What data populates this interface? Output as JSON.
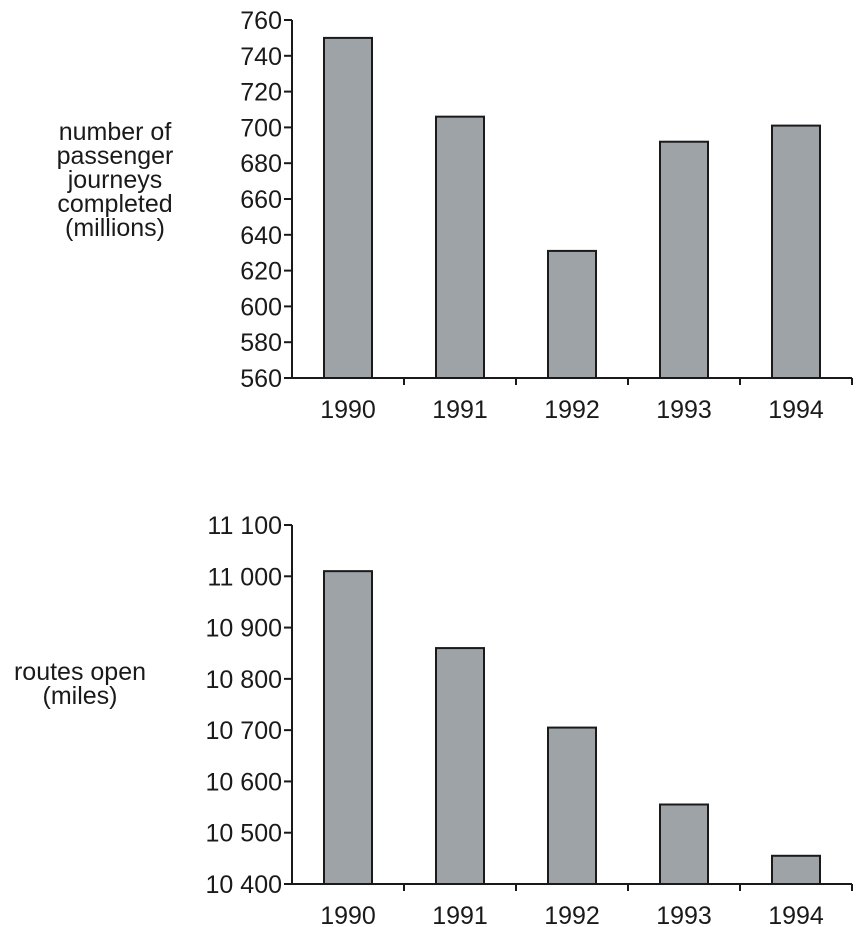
{
  "chart_data": [
    {
      "type": "bar",
      "categories": [
        "1990",
        "1991",
        "1992",
        "1993",
        "1994"
      ],
      "values": [
        750,
        706,
        631,
        692,
        701
      ],
      "ylabel": "number of\npassenger\njourneys\ncompleted\n(millions)",
      "ylim": [
        560,
        760
      ],
      "yticks": [
        560,
        580,
        600,
        620,
        640,
        660,
        680,
        700,
        720,
        740,
        760
      ],
      "ytick_labels": [
        "560",
        "580",
        "600",
        "620",
        "640",
        "660",
        "680",
        "700",
        "720",
        "740",
        "760"
      ],
      "bar_color": "#9ea3a8",
      "grid": false
    },
    {
      "type": "bar",
      "categories": [
        "1990",
        "1991",
        "1992",
        "1993",
        "1994"
      ],
      "values": [
        11010,
        10860,
        10705,
        10555,
        10455
      ],
      "ylabel": "routes open\n(miles)",
      "ylim": [
        10400,
        11100
      ],
      "yticks": [
        10400,
        10500,
        10600,
        10700,
        10800,
        10900,
        11000,
        11100
      ],
      "ytick_labels": [
        "10 400",
        "10 500",
        "10 600",
        "10 700",
        "10 800",
        "10 900",
        "11 000",
        "11 100"
      ],
      "bar_color": "#9ea3a8",
      "grid": false
    }
  ]
}
